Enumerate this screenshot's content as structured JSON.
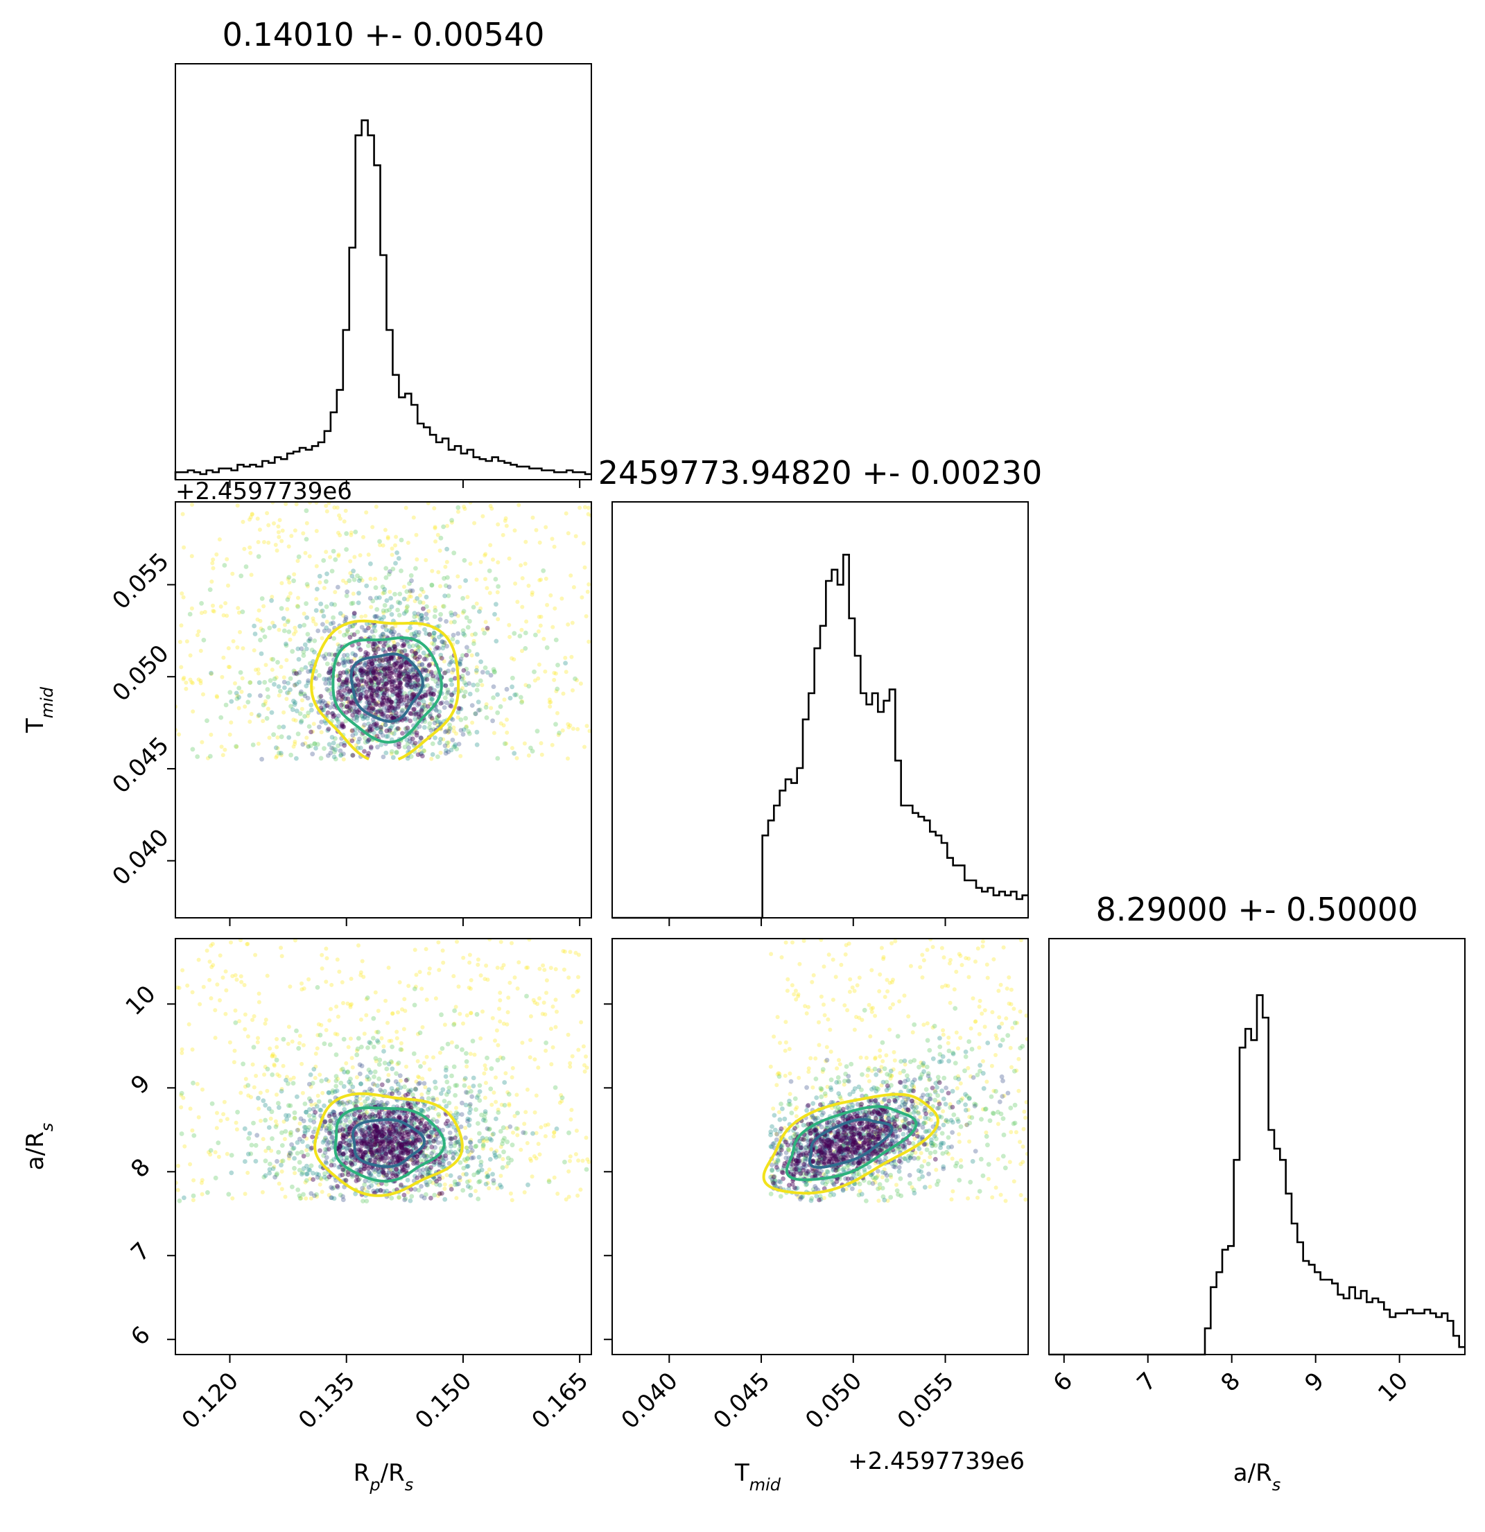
{
  "chart_data": {
    "type": "scatter",
    "kind": "corner-plot",
    "parameters": [
      {
        "name": "Rp/Rs",
        "axis_label": "Rp/Rs",
        "title": "0.14010 +- 0.00540",
        "range": [
          0.113,
          0.1665
        ],
        "ticks": [
          0.12,
          0.135,
          0.15,
          0.165
        ],
        "tick_labels": [
          "0.120",
          "0.135",
          "0.150",
          "0.165"
        ],
        "median": 0.1401,
        "sigma": 0.0054
      },
      {
        "name": "Tmid",
        "axis_label": "Tmid",
        "title": "2459773.94820 +- 0.00230",
        "offset_text": "+2.4597739e6",
        "range": [
          0.0369,
          0.0595
        ],
        "ticks": [
          0.04,
          0.045,
          0.05,
          0.055
        ],
        "tick_labels": [
          "0.040",
          "0.045",
          "0.050",
          "0.055"
        ],
        "median": 0.0482,
        "sigma": 0.0023
      },
      {
        "name": "a/Rs",
        "axis_label": "a/Rs",
        "title": "8.29000 +- 0.50000",
        "range": [
          5.82,
          10.78
        ],
        "ticks": [
          6,
          7,
          8,
          9,
          10
        ],
        "tick_labels": [
          "6",
          "7",
          "8",
          "9",
          "10"
        ],
        "median": 8.29,
        "sigma": 0.5
      }
    ],
    "histograms": [
      {
        "parameter": "Rp/Rs",
        "x_start": 0.113,
        "x_end": 0.1665,
        "counts": [
          0.02,
          0.02,
          0.025,
          0.02,
          0.015,
          0.025,
          0.02,
          0.03,
          0.03,
          0.025,
          0.04,
          0.035,
          0.04,
          0.035,
          0.05,
          0.045,
          0.06,
          0.055,
          0.07,
          0.075,
          0.085,
          0.08,
          0.09,
          0.1,
          0.13,
          0.18,
          0.24,
          0.4,
          0.62,
          0.92,
          0.96,
          0.92,
          0.84,
          0.6,
          0.4,
          0.28,
          0.22,
          0.23,
          0.2,
          0.15,
          0.14,
          0.12,
          0.1,
          0.11,
          0.08,
          0.09,
          0.07,
          0.08,
          0.06,
          0.055,
          0.05,
          0.06,
          0.05,
          0.045,
          0.04,
          0.035,
          0.035,
          0.03,
          0.03,
          0.025,
          0.025,
          0.02,
          0.02,
          0.025,
          0.02,
          0.02,
          0.015
        ]
      },
      {
        "parameter": "Tmid",
        "x_start": 0.0369,
        "x_end": 0.0595,
        "counts": [
          0,
          0,
          0,
          0,
          0,
          0,
          0,
          0,
          0,
          0,
          0,
          0,
          0,
          0,
          0,
          0,
          0,
          0,
          0,
          0,
          0,
          0,
          0,
          0,
          0,
          0,
          0.22,
          0.26,
          0.3,
          0.34,
          0.37,
          0.36,
          0.4,
          0.53,
          0.6,
          0.72,
          0.78,
          0.9,
          0.93,
          0.89,
          0.97,
          0.8,
          0.7,
          0.6,
          0.57,
          0.6,
          0.55,
          0.58,
          0.61,
          0.42,
          0.3,
          0.3,
          0.28,
          0.27,
          0.26,
          0.23,
          0.22,
          0.2,
          0.16,
          0.14,
          0.14,
          0.1,
          0.1,
          0.08,
          0.07,
          0.08,
          0.06,
          0.07,
          0.06,
          0.07,
          0.05,
          0.06
        ]
      },
      {
        "parameter": "a/Rs",
        "x_start": 5.82,
        "x_end": 10.78,
        "counts": [
          0,
          0,
          0,
          0,
          0,
          0,
          0,
          0,
          0,
          0,
          0,
          0,
          0,
          0,
          0,
          0,
          0,
          0,
          0,
          0,
          0,
          0,
          0,
          0,
          0,
          0,
          0,
          0.07,
          0.18,
          0.22,
          0.28,
          0.29,
          0.52,
          0.82,
          0.87,
          0.84,
          0.96,
          0.9,
          0.6,
          0.55,
          0.52,
          0.43,
          0.35,
          0.3,
          0.25,
          0.24,
          0.22,
          0.2,
          0.2,
          0.19,
          0.16,
          0.15,
          0.18,
          0.15,
          0.17,
          0.14,
          0.15,
          0.14,
          0.12,
          0.1,
          0.11,
          0.11,
          0.12,
          0.11,
          0.11,
          0.12,
          0.11,
          0.1,
          0.11,
          0.09,
          0.05,
          0.02
        ]
      }
    ],
    "scatter_panels": [
      {
        "x": "Rp/Rs",
        "y": "Tmid",
        "center": [
          0.1401,
          0.0495
        ],
        "spread": [
          0.0045,
          0.0018
        ],
        "clip_below_y": 0.0455
      },
      {
        "x": "Rp/Rs",
        "y": "a/Rs",
        "center": [
          0.1401,
          8.35
        ],
        "spread": [
          0.0045,
          0.28
        ],
        "clip_below_y": 7.65
      },
      {
        "x": "Tmid",
        "y": "a/Rs",
        "center": [
          0.0497,
          8.35
        ],
        "spread": [
          0.0022,
          0.28
        ],
        "correlation": 0.55,
        "clip_below_y": 7.65,
        "clip_left_x": 0.0455
      }
    ],
    "contour_colors": [
      "#2f6d8e",
      "#2db27d",
      "#f2e21c"
    ],
    "point_colors": [
      "#440154",
      "#3b528b",
      "#21918c",
      "#5ec962",
      "#fde725"
    ],
    "grid": false,
    "legend": "none"
  }
}
